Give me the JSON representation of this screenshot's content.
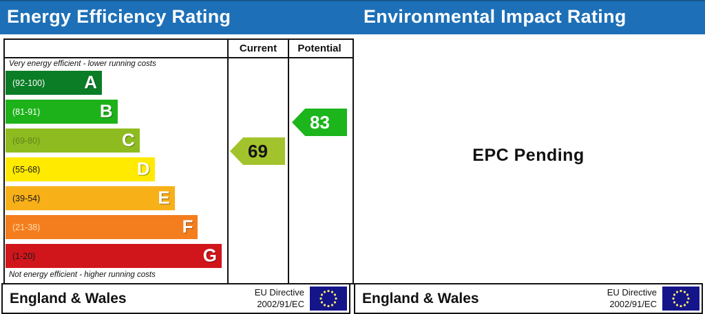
{
  "left": {
    "title": "Energy Efficiency Rating",
    "col_current": "Current",
    "col_potential": "Potential",
    "caption_top": "Very energy efficient - lower running costs",
    "caption_bottom": "Not energy efficient - higher running costs",
    "footer_region": "England & Wales",
    "footer_directive_1": "EU Directive",
    "footer_directive_2": "2002/91/EC"
  },
  "right": {
    "title": "Environmental Impact Rating",
    "status": "EPC Pending",
    "footer_region": "England & Wales",
    "footer_directive_1": "EU Directive",
    "footer_directive_2": "2002/91/EC"
  },
  "colors": {
    "header_blue": "#1d70b7",
    "table_border": "#111111",
    "flag_blue": "#15158a",
    "flag_stars": "#f5e96a"
  },
  "chart_data": {
    "type": "bar",
    "subtype": "epc-energy-efficiency-rating",
    "title": "Energy Efficiency Rating",
    "orientation": "horizontal",
    "columns": [
      "Current",
      "Potential"
    ],
    "note_top": "Very energy efficient - lower running costs",
    "note_bottom": "Not energy efficient - higher running costs",
    "bands": [
      {
        "letter": "A",
        "range": "(92-100)",
        "min": 92,
        "max": 100,
        "color": "#0a7d26",
        "width_pct": 43.5,
        "range_text_color": "#ffffff"
      },
      {
        "letter": "B",
        "range": "(81-91)",
        "min": 81,
        "max": 91,
        "color": "#1db21a",
        "width_pct": 50.5,
        "range_text_color": "#ffffff"
      },
      {
        "letter": "C",
        "range": "(69-80)",
        "min": 69,
        "max": 80,
        "color": "#8ebc20",
        "width_pct": 60.5,
        "range_text_color": "#64821a"
      },
      {
        "letter": "D",
        "range": "(55-68)",
        "min": 55,
        "max": 68,
        "color": "#ffea00",
        "width_pct": 67.3,
        "range_text_color": "#1a1a1a"
      },
      {
        "letter": "E",
        "range": "(39-54)",
        "min": 39,
        "max": 54,
        "color": "#f8b019",
        "width_pct": 76.3,
        "range_text_color": "#1a1a1a"
      },
      {
        "letter": "F",
        "range": "(21-38)",
        "min": 21,
        "max": 38,
        "color": "#f47d1d",
        "width_pct": 86.8,
        "range_text_color": "#fbdcae"
      },
      {
        "letter": "G",
        "range": "(1-20)",
        "min": 1,
        "max": 20,
        "color": "#d0161b",
        "width_pct": 97.5,
        "range_text_color": "#1a1a1a"
      }
    ],
    "current": {
      "value": 69,
      "band": "C",
      "band_index": 2,
      "color": "#a3c32d",
      "text_color": "#141414"
    },
    "potential": {
      "value": 83,
      "band": "B",
      "band_index": 1,
      "color": "#1cb51c",
      "text_color": "#ffffff"
    },
    "right_panel": {
      "title": "Environmental Impact Rating",
      "status": "EPC Pending",
      "values": null
    }
  }
}
